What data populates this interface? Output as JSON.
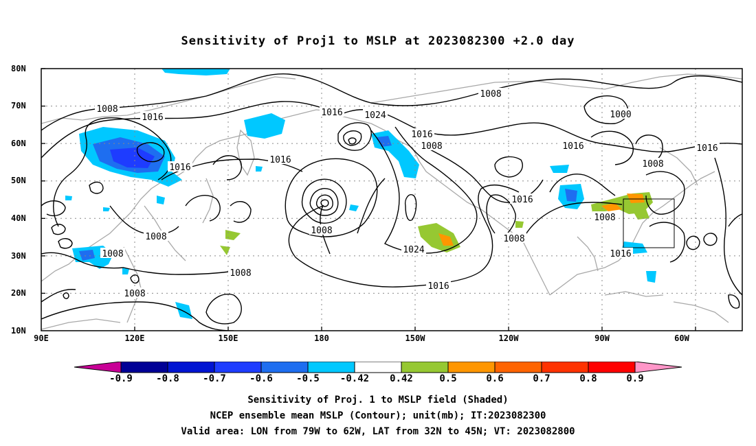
{
  "title": "Sensitivity of Proj1 to MSLP at 2023082300 +2.0 day",
  "lat_labels": [
    "80N",
    "70N",
    "60N",
    "50N",
    "40N",
    "30N",
    "20N",
    "10N"
  ],
  "lon_labels": [
    "90E",
    "120E",
    "150E",
    "180",
    "150W",
    "120W",
    "90W",
    "60W"
  ],
  "contour_labels": [
    {
      "text": "1008"
    },
    {
      "text": "1016"
    },
    {
      "text": "1016"
    },
    {
      "text": "1016"
    },
    {
      "text": "1008"
    },
    {
      "text": "1016"
    },
    {
      "text": "1024"
    },
    {
      "text": "1016"
    },
    {
      "text": "1008"
    },
    {
      "text": "1008"
    },
    {
      "text": "1008"
    },
    {
      "text": "1008"
    },
    {
      "text": "1008"
    },
    {
      "text": "1024"
    },
    {
      "text": "1016"
    },
    {
      "text": "1016"
    },
    {
      "text": "1008"
    },
    {
      "text": "1008"
    },
    {
      "text": "1000"
    },
    {
      "text": "1016"
    },
    {
      "text": "1008"
    },
    {
      "text": "1016"
    },
    {
      "text": "1016"
    },
    {
      "text": "1008"
    }
  ],
  "colorbar": {
    "labels": [
      "-0.9",
      "-0.8",
      "-0.7",
      "-0.6",
      "-0.5",
      "-0.42",
      "0.42",
      "0.5",
      "0.6",
      "0.7",
      "0.8",
      "0.9"
    ],
    "colors": [
      "#000096",
      "#0014d2",
      "#1e3cff",
      "#1e6ef0",
      "#00c8ff",
      "#ffffff",
      "#96c832",
      "#ff9600",
      "#ff6400",
      "#ff3200",
      "#ff0000"
    ],
    "low_color": "#c80096",
    "high_color": "#ff96c8"
  },
  "footer": {
    "line1": "Sensitivity of Proj. 1 to MSLP field (Shaded)",
    "line2": "NCEP ensemble mean MSLP (Contour); unit(mb); IT:2023082300",
    "line3": "Valid area: LON from 79W to 62W, LAT from 32N to 45N; VT: 2023082800"
  },
  "valid_area": {
    "lon_min": -79,
    "lon_max": -62,
    "lat_min": 32,
    "lat_max": 45
  }
}
